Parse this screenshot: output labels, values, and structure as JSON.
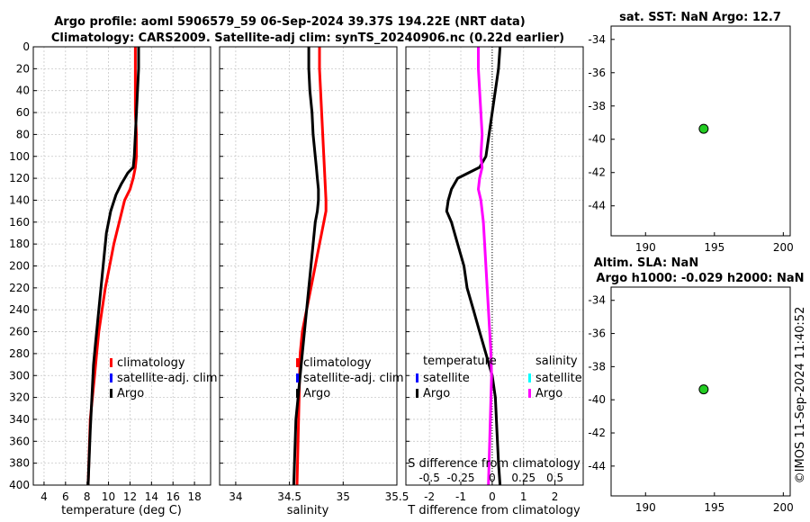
{
  "header": {
    "title_line1": "Argo profile: aoml 5906579_59 06-Sep-2024 39.37S 194.22E (NRT data)",
    "title_line2": "Climatology: CARS2009. Satellite-adj clim: synTS_20240906.nc (0.22d earlier)"
  },
  "colors": {
    "climatology": "#ff0000",
    "satellite_adj": "#0000ff",
    "argo": "#000000",
    "argo_salinity_diff": "#ff00ff",
    "satellite_s": "#00ffff",
    "marker_fill": "#22cc22"
  },
  "chart_data": [
    {
      "id": "temperature",
      "type": "line",
      "xlabel": "temperature (deg C)",
      "ylabel": "",
      "xlim": [
        3,
        19.5
      ],
      "ylim": [
        400,
        0
      ],
      "xticks": [
        "4",
        "6",
        "8",
        "10",
        "12",
        "14",
        "16",
        "18"
      ],
      "xtick_values": [
        4,
        6,
        8,
        10,
        12,
        14,
        16,
        18
      ],
      "yticks": [
        "0",
        "20",
        "40",
        "60",
        "80",
        "100",
        "120",
        "140",
        "160",
        "180",
        "200",
        "220",
        "240",
        "260",
        "280",
        "300",
        "320",
        "340",
        "360",
        "380",
        "400"
      ],
      "ytick_values": [
        0,
        20,
        40,
        60,
        80,
        100,
        120,
        140,
        160,
        180,
        200,
        220,
        240,
        260,
        280,
        300,
        320,
        340,
        360,
        380,
        400
      ],
      "legend": [
        "climatology",
        "satellite-adj. clim",
        "Argo"
      ],
      "series": [
        {
          "name": "climatology",
          "x": [
            12.5,
            12.5,
            12.5,
            12.5,
            12.6,
            12.6,
            12.5,
            12.3,
            12.0,
            11.5,
            11.0,
            10.5,
            10.1,
            9.7,
            9.4,
            9.1,
            8.9,
            8.7,
            8.5,
            8.3,
            8.1
          ],
          "y": [
            0,
            20,
            40,
            60,
            80,
            100,
            110,
            120,
            130,
            140,
            160,
            180,
            200,
            220,
            240,
            260,
            280,
            300,
            320,
            340,
            400
          ]
        },
        {
          "name": "Argo",
          "x": [
            12.8,
            12.8,
            12.7,
            12.6,
            12.5,
            12.4,
            12.3,
            11.8,
            11.2,
            10.7,
            10.2,
            9.8,
            9.6,
            9.4,
            9.2,
            9.0,
            8.8,
            8.6,
            8.5,
            8.4,
            8.3,
            8.1
          ],
          "y": [
            0,
            20,
            40,
            60,
            80,
            100,
            110,
            115,
            125,
            135,
            150,
            170,
            190,
            210,
            230,
            250,
            270,
            290,
            310,
            330,
            350,
            400
          ]
        }
      ]
    },
    {
      "id": "salinity",
      "type": "line",
      "xlabel": "salinity",
      "xlim": [
        33.85,
        35.5
      ],
      "ylim": [
        400,
        0
      ],
      "xticks": [
        "34",
        "34.5",
        "35",
        "35.5"
      ],
      "xtick_values": [
        34,
        34.5,
        35,
        35.5
      ],
      "legend": [
        "climatology",
        "satellite-adj. clim",
        "Argo"
      ],
      "series": [
        {
          "name": "climatology",
          "x": [
            34.78,
            34.78,
            34.79,
            34.8,
            34.81,
            34.82,
            34.83,
            34.84,
            34.84,
            34.82,
            34.8,
            34.78,
            34.76,
            34.74,
            34.72,
            34.7,
            34.68,
            34.66,
            34.64,
            34.62,
            34.6,
            34.57
          ],
          "y": [
            0,
            20,
            40,
            60,
            80,
            100,
            120,
            140,
            150,
            160,
            170,
            180,
            190,
            200,
            210,
            220,
            230,
            240,
            250,
            260,
            280,
            400
          ]
        },
        {
          "name": "Argo",
          "x": [
            34.68,
            34.68,
            34.69,
            34.71,
            34.72,
            34.74,
            34.75,
            34.76,
            34.77,
            34.77,
            34.76,
            34.74,
            34.72,
            34.7,
            34.68,
            34.66,
            34.64,
            34.62,
            34.6,
            34.58,
            34.56,
            34.54
          ],
          "y": [
            0,
            20,
            40,
            60,
            80,
            100,
            110,
            120,
            130,
            140,
            150,
            160,
            180,
            200,
            220,
            240,
            260,
            280,
            300,
            320,
            340,
            400
          ]
        }
      ]
    },
    {
      "id": "difference",
      "type": "line",
      "xlabel": "T difference from climatology",
      "x2label": "S difference from climatology",
      "xlim": [
        -2.75,
        2.9
      ],
      "x2lim": [
        -0.6875,
        0.725
      ],
      "ylim": [
        400,
        0
      ],
      "xticks": [
        "-2",
        "-1",
        "0",
        "1",
        "2"
      ],
      "xtick_values": [
        -2,
        -1,
        0,
        1,
        2
      ],
      "x2ticks": [
        "-0.5",
        "-0.25",
        "0",
        "0.25",
        "0.5"
      ],
      "x2tick_values": [
        -0.5,
        -0.25,
        0,
        0.25,
        0.5
      ],
      "legend_t_title": "temperature",
      "legend_s_title": "salinity",
      "legend_t": [
        "satellite",
        "Argo"
      ],
      "legend_s": [
        "satellite",
        "Argo"
      ],
      "series": [
        {
          "name": "T Argo",
          "x": [
            0.25,
            0.2,
            0.1,
            0.0,
            -0.1,
            -0.2,
            -0.4,
            -1.1,
            -1.3,
            -1.4,
            -1.45,
            -1.3,
            -1.1,
            -0.9,
            -0.8,
            -0.6,
            -0.4,
            -0.2,
            0.0,
            0.1,
            0.15,
            0.2,
            0.25
          ],
          "y": [
            0,
            20,
            40,
            60,
            80,
            100,
            110,
            120,
            130,
            140,
            150,
            160,
            180,
            200,
            220,
            240,
            260,
            280,
            300,
            320,
            350,
            380,
            400
          ]
        },
        {
          "name": "S Argo",
          "x": [
            -0.11,
            -0.11,
            -0.1,
            -0.09,
            -0.08,
            -0.09,
            -0.08,
            -0.1,
            -0.11,
            -0.09,
            -0.07,
            -0.06,
            -0.05,
            -0.04,
            -0.03,
            -0.02,
            -0.01,
            -0.005,
            -0.01,
            -0.02,
            -0.03
          ],
          "y": [
            0,
            20,
            40,
            60,
            80,
            100,
            110,
            120,
            130,
            140,
            160,
            180,
            200,
            220,
            240,
            260,
            280,
            300,
            320,
            360,
            400
          ]
        }
      ]
    },
    {
      "id": "sst_map",
      "type": "scatter",
      "title": "sat. SST: NaN Argo: 12.7",
      "xlim": [
        187.5,
        200.5
      ],
      "ylim": [
        -45.8,
        -33.2
      ],
      "xticks": [
        "190",
        "195",
        "200"
      ],
      "xtick_values": [
        190,
        195,
        200
      ],
      "yticks": [
        "-34",
        "-36",
        "-38",
        "-40",
        "-42",
        "-44"
      ],
      "ytick_values": [
        -34,
        -36,
        -38,
        -40,
        -42,
        -44
      ],
      "points": [
        {
          "x": 194.22,
          "y": -39.37
        }
      ]
    },
    {
      "id": "sla_map",
      "type": "scatter",
      "title": "Altim. SLA: NaN",
      "title2": "Argo h1000: -0.029 h2000: NaN",
      "xlim": [
        187.5,
        200.5
      ],
      "ylim": [
        -45.8,
        -33.2
      ],
      "xticks": [
        "190",
        "195",
        "200"
      ],
      "xtick_values": [
        190,
        195,
        200
      ],
      "yticks": [
        "-34",
        "-36",
        "-38",
        "-40",
        "-42",
        "-44"
      ],
      "ytick_values": [
        -34,
        -36,
        -38,
        -40,
        -42,
        -44
      ],
      "points": [
        {
          "x": 194.22,
          "y": -39.37
        }
      ]
    }
  ],
  "footer": {
    "imos_stamp": "©IMOS 11-Sep-2024 11:40:52"
  }
}
